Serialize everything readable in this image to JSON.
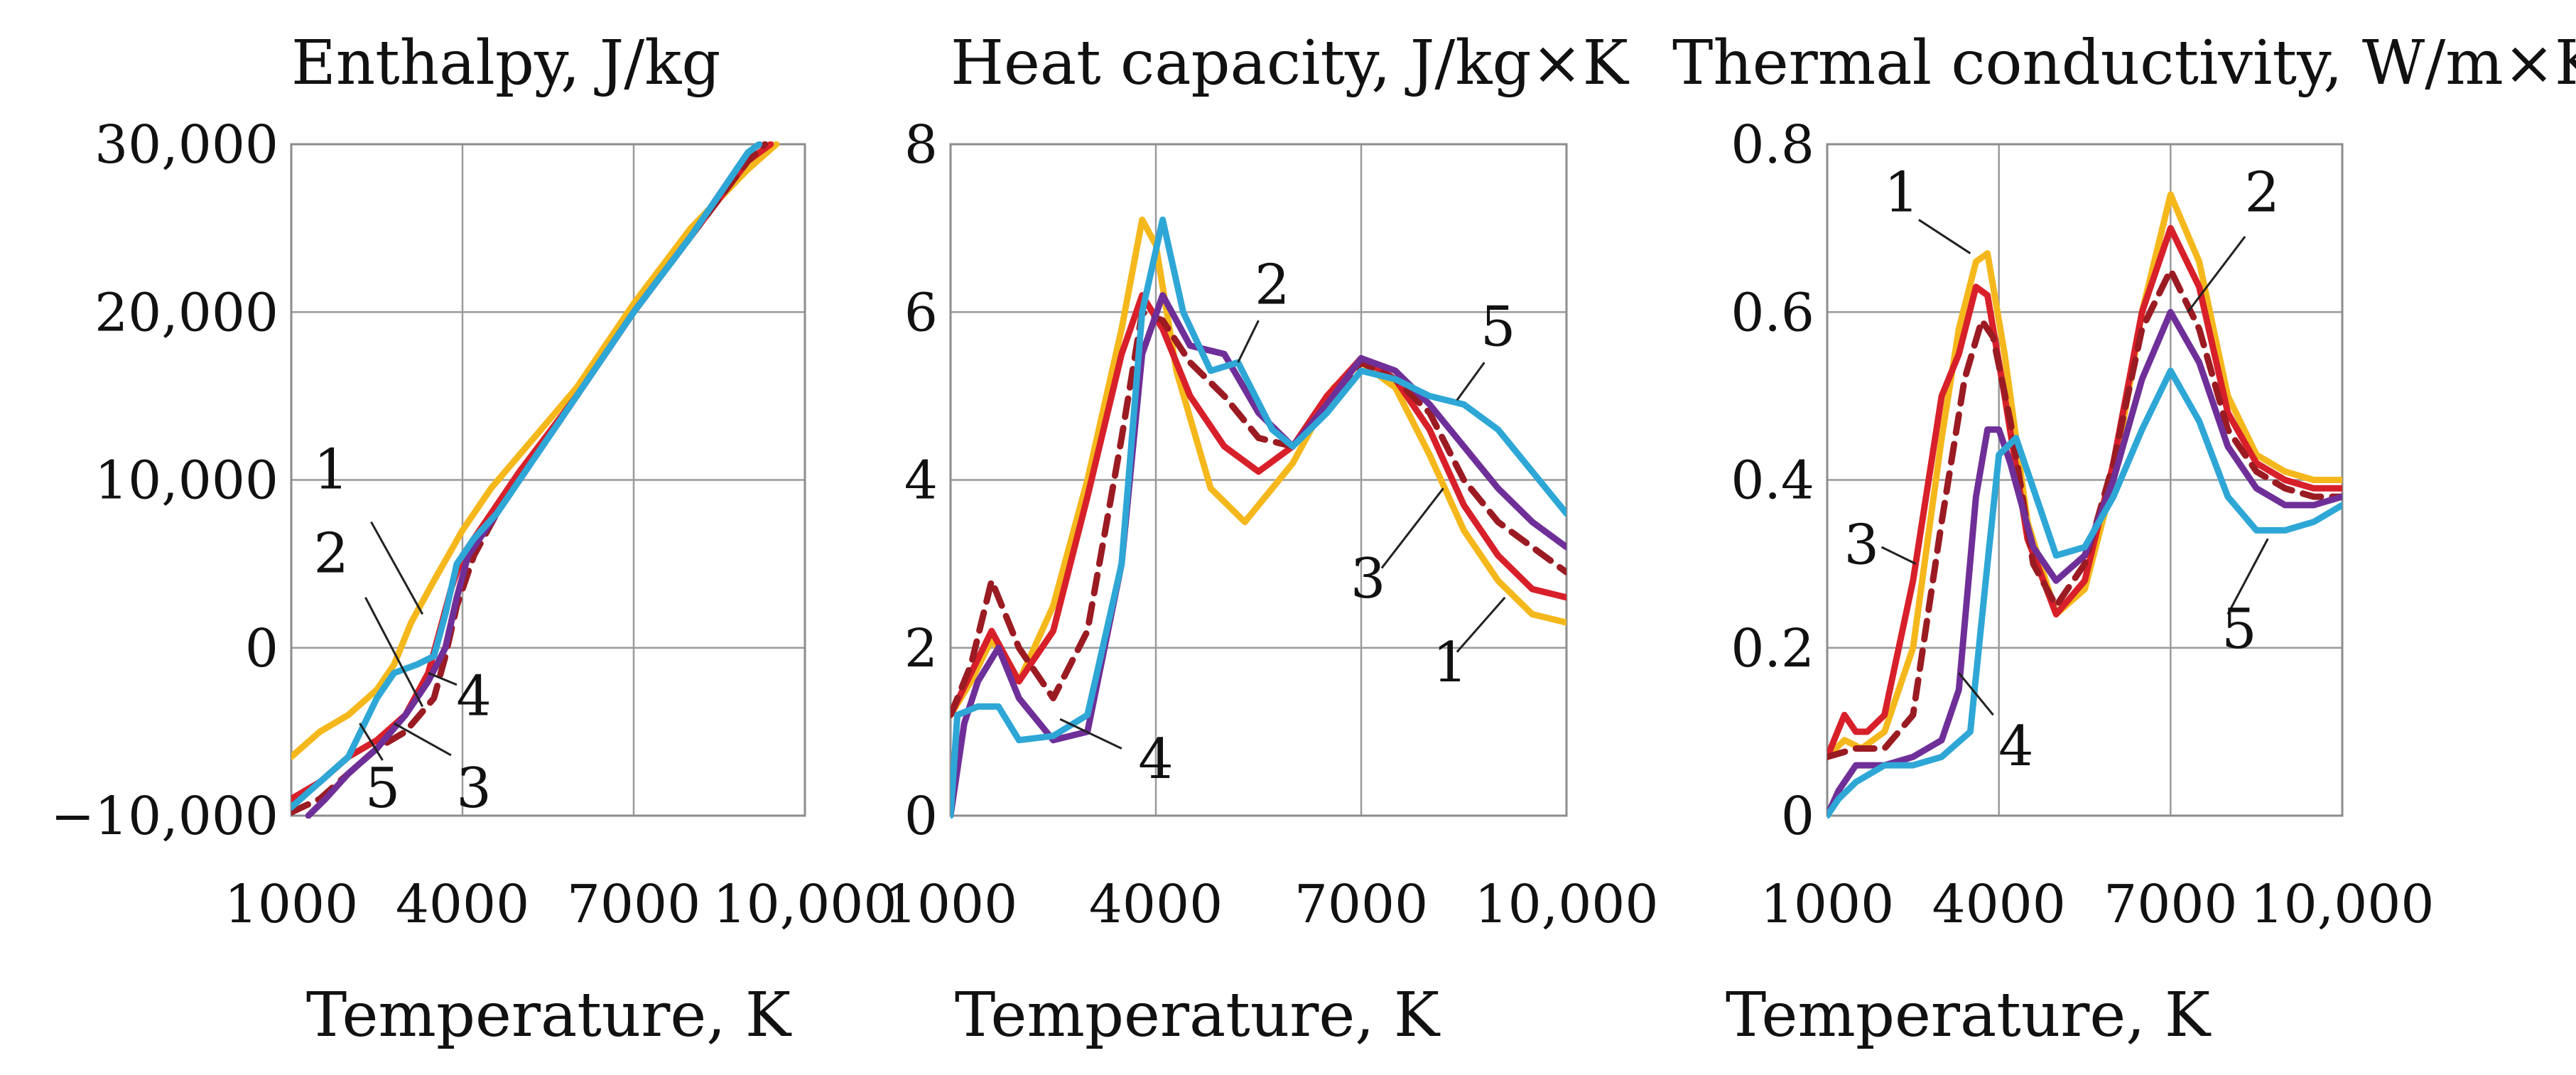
{
  "chart_data": [
    {
      "type": "line",
      "title": "Enthalpy, J/kg",
      "xlabel": "Temperature, K",
      "ylabel": "",
      "xlim": [
        1000,
        10000
      ],
      "ylim": [
        -10000,
        30000
      ],
      "xticks": [
        1000,
        4000,
        7000,
        10000
      ],
      "xtick_labels": [
        "1000",
        "4000",
        "7000",
        "10,000"
      ],
      "yticks": [
        -10000,
        0,
        10000,
        20000,
        30000
      ],
      "ytick_labels": [
        "−10,000",
        "0",
        "10,000",
        "20,000",
        "30,000"
      ],
      "grid": true,
      "series": [
        {
          "name": "1",
          "color": "#f5b81c",
          "dash": false,
          "x": [
            1000,
            1500,
            2000,
            2500,
            2800,
            3100,
            3500,
            4000,
            4500,
            5000,
            6000,
            7000,
            8000,
            9000,
            9500
          ],
          "y": [
            -6500,
            -5000,
            -4000,
            -2500,
            -1000,
            1500,
            4000,
            7000,
            9500,
            11500,
            15500,
            20500,
            25000,
            28500,
            30000
          ]
        },
        {
          "name": "2",
          "color": "#d8202a",
          "dash": false,
          "x": [
            1000,
            1500,
            2000,
            2500,
            3000,
            3400,
            3600,
            3800,
            4000,
            4500,
            5000,
            6000,
            7000,
            8000,
            9000,
            9400
          ],
          "y": [
            -9000,
            -8000,
            -6500,
            -5500,
            -4000,
            -1500,
            1000,
            3500,
            5500,
            8000,
            10500,
            15000,
            20000,
            24500,
            29000,
            30000
          ]
        },
        {
          "name": "3",
          "color": "#9b1b23",
          "dash": true,
          "x": [
            1000,
            1500,
            2000,
            2500,
            3000,
            3500,
            3700,
            3900,
            4200,
            4600,
            5000,
            6000,
            7000,
            8000,
            9000,
            9300
          ],
          "y": [
            -9800,
            -9000,
            -7500,
            -6000,
            -5000,
            -3000,
            -500,
            2500,
            5500,
            8000,
            10000,
            15000,
            20000,
            24500,
            29000,
            30000
          ]
        },
        {
          "name": "4",
          "color": "#6f2f98",
          "dash": false,
          "x": [
            1300,
            1600,
            2000,
            2500,
            3000,
            3400,
            3700,
            3900,
            4100,
            4500,
            5000,
            6000,
            7000,
            8000,
            9000,
            9200
          ],
          "y": [
            -10000,
            -9000,
            -7500,
            -6000,
            -4000,
            -2000,
            0,
            3000,
            5500,
            7500,
            10000,
            15000,
            20000,
            24500,
            29500,
            30000
          ]
        },
        {
          "name": "5",
          "color": "#2ea7d6",
          "dash": false,
          "x": [
            1000,
            1500,
            2000,
            2500,
            2800,
            3200,
            3500,
            3700,
            3900,
            4200,
            4600,
            5000,
            6000,
            7000,
            8000,
            9000,
            9200
          ],
          "y": [
            -9500,
            -8000,
            -6500,
            -3000,
            -1500,
            -1000,
            -500,
            2000,
            5000,
            6500,
            8000,
            10000,
            15000,
            20000,
            24500,
            29500,
            30000
          ]
        }
      ],
      "curve_labels": [
        {
          "text": "1",
          "x": 1700,
          "y": 9500,
          "lx": 2400,
          "ly": 7500,
          "tx": 3300,
          "ty": 2000
        },
        {
          "text": "2",
          "x": 1700,
          "y": 4500,
          "lx": 2300,
          "ly": 3000,
          "tx": 3300,
          "ty": -3500
        },
        {
          "text": "4",
          "x": 4200,
          "y": -4000,
          "lx": 3900,
          "ly": -2200,
          "tx": 3400,
          "ty": -1500
        },
        {
          "text": "5",
          "x": 2600,
          "y": -9500,
          "lx": 2600,
          "ly": -6700,
          "tx": 2200,
          "ty": -4500
        },
        {
          "text": "3",
          "x": 4200,
          "y": -9500,
          "lx": 3800,
          "ly": -6400,
          "tx": 2800,
          "ty": -4500
        }
      ]
    },
    {
      "type": "line",
      "title": "Heat capacity, J/kg×K",
      "xlabel": "Temperature, K",
      "ylabel": "",
      "xlim": [
        1000,
        10000
      ],
      "ylim": [
        0,
        8
      ],
      "xticks": [
        1000,
        4000,
        7000,
        10000
      ],
      "xtick_labels": [
        "1000",
        "4000",
        "7000",
        "10,000"
      ],
      "yticks": [
        0,
        2,
        4,
        6,
        8
      ],
      "ytick_labels": [
        "0",
        "2",
        "4",
        "6",
        "8"
      ],
      "grid": true,
      "series": [
        {
          "name": "1",
          "color": "#f5b81c",
          "dash": false,
          "x": [
            1000,
            1300,
            1600,
            2000,
            2500,
            3000,
            3500,
            3800,
            4000,
            4300,
            4800,
            5300,
            6000,
            6600,
            7000,
            7500,
            8000,
            8500,
            9000,
            9500,
            10000
          ],
          "y": [
            1.2,
            1.6,
            2.1,
            1.6,
            2.5,
            4.0,
            5.8,
            7.1,
            6.8,
            5.3,
            3.9,
            3.5,
            4.2,
            5.1,
            5.4,
            5.1,
            4.3,
            3.4,
            2.8,
            2.4,
            2.3
          ]
        },
        {
          "name": "2",
          "color": "#d8202a",
          "dash": false,
          "x": [
            1000,
            1300,
            1600,
            2000,
            2500,
            3000,
            3500,
            3800,
            4100,
            4500,
            5000,
            5500,
            6000,
            6500,
            7000,
            7500,
            8000,
            8500,
            9000,
            9500,
            10000
          ],
          "y": [
            1.2,
            1.7,
            2.2,
            1.6,
            2.2,
            3.8,
            5.5,
            6.2,
            5.8,
            5.0,
            4.4,
            4.1,
            4.4,
            5.0,
            5.45,
            5.2,
            4.6,
            3.7,
            3.1,
            2.7,
            2.6
          ]
        },
        {
          "name": "3",
          "color": "#9b1b23",
          "dash": true,
          "x": [
            1000,
            1300,
            1600,
            2000,
            2500,
            3000,
            3500,
            3800,
            4100,
            4500,
            5000,
            5500,
            6000,
            6500,
            7000,
            7500,
            8000,
            8500,
            9000,
            9500,
            10000
          ],
          "y": [
            1.2,
            1.8,
            2.8,
            2.0,
            1.4,
            2.2,
            4.5,
            6.0,
            5.9,
            5.4,
            5.0,
            4.5,
            4.4,
            4.9,
            5.4,
            5.2,
            4.8,
            4.0,
            3.5,
            3.2,
            2.9
          ]
        },
        {
          "name": "4",
          "color": "#6f2f98",
          "dash": false,
          "x": [
            1000,
            1200,
            1400,
            1700,
            2000,
            2500,
            3000,
            3500,
            3800,
            4100,
            4500,
            5000,
            5500,
            6000,
            6500,
            7000,
            7500,
            8000,
            8500,
            9000,
            9500,
            10000
          ],
          "y": [
            0.0,
            1.1,
            1.6,
            2.0,
            1.4,
            0.9,
            1.0,
            3.0,
            5.5,
            6.2,
            5.6,
            5.5,
            4.8,
            4.4,
            4.9,
            5.45,
            5.3,
            4.9,
            4.4,
            3.9,
            3.5,
            3.2
          ]
        },
        {
          "name": "5",
          "color": "#2ea7d6",
          "dash": false,
          "x": [
            1000,
            1100,
            1400,
            1700,
            2000,
            2500,
            3000,
            3500,
            3800,
            4100,
            4400,
            4800,
            5200,
            5700,
            6000,
            6500,
            7000,
            7500,
            8000,
            8500,
            9000,
            9500,
            10000
          ],
          "y": [
            0.0,
            1.2,
            1.3,
            1.3,
            0.9,
            0.95,
            1.2,
            3.0,
            6.0,
            7.1,
            6.0,
            5.3,
            5.4,
            4.6,
            4.4,
            4.8,
            5.3,
            5.2,
            5.0,
            4.9,
            4.6,
            4.1,
            3.6
          ]
        }
      ],
      "curve_labels": [
        {
          "text": "2",
          "x": 5700,
          "y": 6.1,
          "lx": 5500,
          "ly": 5.9,
          "tx": 5200,
          "ty": 5.4
        },
        {
          "text": "5",
          "x": 9000,
          "y": 5.6,
          "lx": 8800,
          "ly": 5.4,
          "tx": 8400,
          "ty": 4.95
        },
        {
          "text": "3",
          "x": 7100,
          "y": 2.6,
          "lx": 7300,
          "ly": 2.95,
          "tx": 8200,
          "ty": 3.9
        },
        {
          "text": "1",
          "x": 8300,
          "y": 1.6,
          "lx": 8400,
          "ly": 1.95,
          "tx": 9100,
          "ty": 2.6
        },
        {
          "text": "4",
          "x": 4000,
          "y": 0.45,
          "lx": 3500,
          "ly": 0.8,
          "tx": 2600,
          "ty": 1.15
        }
      ]
    },
    {
      "type": "line",
      "title": "Thermal conductivity, W/m×K",
      "xlabel": "Temperature, K",
      "ylabel": "",
      "xlim": [
        1000,
        10000
      ],
      "ylim": [
        0,
        0.8
      ],
      "xticks": [
        1000,
        4000,
        7000,
        10000
      ],
      "xtick_labels": [
        "1000",
        "4000",
        "7000",
        "10,000"
      ],
      "yticks": [
        0,
        0.2,
        0.4,
        0.6,
        0.8
      ],
      "ytick_labels": [
        "0",
        "0.2",
        "0.4",
        "0.6",
        "0.8"
      ],
      "grid": true,
      "series": [
        {
          "name": "1",
          "color": "#f5b81c",
          "dash": false,
          "x": [
            1000,
            1300,
            1600,
            2000,
            2500,
            3000,
            3300,
            3600,
            3800,
            4100,
            4500,
            5000,
            5500,
            6000,
            6500,
            7000,
            7500,
            8000,
            8500,
            9000,
            9500,
            10000
          ],
          "y": [
            0.07,
            0.09,
            0.08,
            0.1,
            0.2,
            0.45,
            0.58,
            0.66,
            0.67,
            0.55,
            0.35,
            0.24,
            0.27,
            0.4,
            0.6,
            0.74,
            0.66,
            0.5,
            0.43,
            0.41,
            0.4,
            0.4
          ]
        },
        {
          "name": "2",
          "color": "#d8202a",
          "dash": false,
          "x": [
            1000,
            1300,
            1500,
            1700,
            2000,
            2500,
            3000,
            3300,
            3600,
            3800,
            4100,
            4500,
            5000,
            5500,
            6000,
            6500,
            7000,
            7500,
            8000,
            8500,
            9000,
            9500,
            10000
          ],
          "y": [
            0.07,
            0.12,
            0.1,
            0.1,
            0.12,
            0.28,
            0.5,
            0.55,
            0.63,
            0.62,
            0.5,
            0.33,
            0.24,
            0.28,
            0.42,
            0.6,
            0.7,
            0.63,
            0.48,
            0.42,
            0.4,
            0.39,
            0.39
          ]
        },
        {
          "name": "3",
          "color": "#9b1b23",
          "dash": true,
          "x": [
            1000,
            1500,
            2000,
            2500,
            3000,
            3400,
            3700,
            3900,
            4200,
            4600,
            5000,
            5500,
            6000,
            6500,
            7000,
            7500,
            8000,
            8500,
            9000,
            9500,
            10000
          ],
          "y": [
            0.07,
            0.08,
            0.08,
            0.12,
            0.35,
            0.52,
            0.59,
            0.57,
            0.47,
            0.3,
            0.25,
            0.3,
            0.42,
            0.58,
            0.65,
            0.58,
            0.46,
            0.41,
            0.39,
            0.38,
            0.38
          ]
        },
        {
          "name": "4",
          "color": "#6f2f98",
          "dash": false,
          "x": [
            1000,
            1200,
            1500,
            2000,
            2500,
            3000,
            3300,
            3600,
            3800,
            4000,
            4200,
            4600,
            5000,
            5500,
            6000,
            6500,
            7000,
            7500,
            8000,
            8500,
            9000,
            9500,
            10000
          ],
          "y": [
            0.0,
            0.03,
            0.06,
            0.06,
            0.07,
            0.09,
            0.15,
            0.38,
            0.46,
            0.46,
            0.42,
            0.32,
            0.28,
            0.31,
            0.4,
            0.52,
            0.6,
            0.54,
            0.44,
            0.39,
            0.37,
            0.37,
            0.38
          ]
        },
        {
          "name": "5",
          "color": "#2ea7d6",
          "dash": false,
          "x": [
            1000,
            1200,
            1500,
            2000,
            2500,
            3000,
            3500,
            3800,
            4000,
            4300,
            4700,
            5000,
            5500,
            6000,
            6500,
            7000,
            7500,
            8000,
            8500,
            9000,
            9500,
            10000
          ],
          "y": [
            0.0,
            0.02,
            0.04,
            0.06,
            0.06,
            0.07,
            0.1,
            0.3,
            0.43,
            0.45,
            0.37,
            0.31,
            0.32,
            0.38,
            0.46,
            0.53,
            0.47,
            0.38,
            0.34,
            0.34,
            0.35,
            0.37
          ]
        }
      ],
      "curve_labels": [
        {
          "text": "1",
          "x": 2300,
          "y": 0.72,
          "lx": 2600,
          "ly": 0.71,
          "tx": 3500,
          "ty": 0.67
        },
        {
          "text": "2",
          "x": 8600,
          "y": 0.72,
          "lx": 8300,
          "ly": 0.69,
          "tx": 7300,
          "ty": 0.6
        },
        {
          "text": "3",
          "x": 1600,
          "y": 0.3,
          "lx": 1950,
          "ly": 0.32,
          "tx": 2550,
          "ty": 0.3
        },
        {
          "text": "5",
          "x": 8200,
          "y": 0.2,
          "lx": 8000,
          "ly": 0.24,
          "tx": 8700,
          "ty": 0.33
        },
        {
          "text": "4",
          "x": 4300,
          "y": 0.06,
          "lx": 3900,
          "ly": 0.12,
          "tx": 3300,
          "ty": 0.17
        }
      ]
    }
  ]
}
